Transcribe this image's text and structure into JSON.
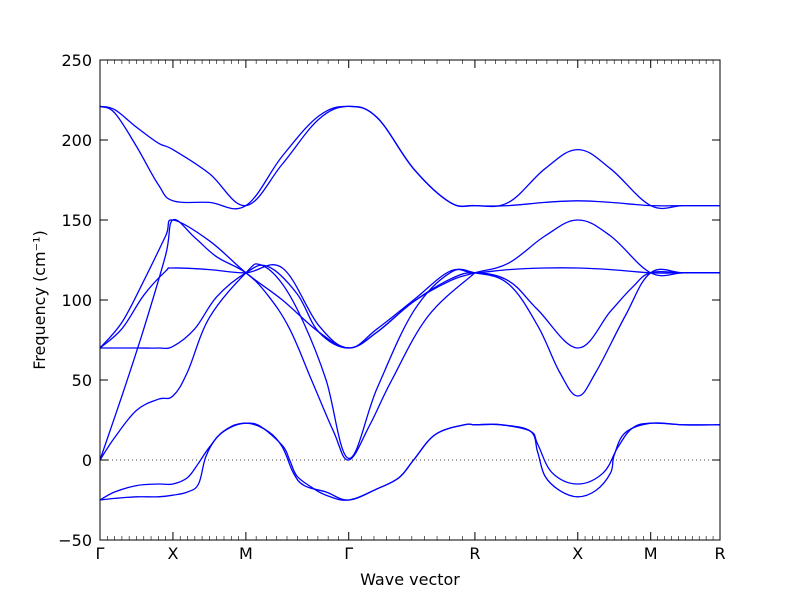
{
  "chart_data": {
    "type": "line",
    "title": "",
    "xlabel": "Wave vector",
    "ylabel": "Frequency (cm⁻¹)",
    "ylim": [
      -50,
      250
    ],
    "yticks": [
      "−50",
      "0",
      "50",
      "100",
      "150",
      "200",
      "250"
    ],
    "ytick_values": [
      -50,
      0,
      50,
      100,
      150,
      200,
      250
    ],
    "xlim": [
      0,
      8.5
    ],
    "xticks": [
      {
        "label": "Γ",
        "x": 0
      },
      {
        "label": "X",
        "x": 1
      },
      {
        "label": "M",
        "x": 2
      },
      {
        "label": "Γ",
        "x": 3.41
      },
      {
        "label": "R",
        "x": 5.14
      },
      {
        "label": "X",
        "x": 6.55
      },
      {
        "label": "M",
        "x": 7.55
      },
      {
        "label": "R",
        "x": 8.5
      }
    ],
    "line_color": "#0000ff",
    "zero_line": true,
    "grid": false,
    "series": [
      {
        "x": [
          0,
          0.2,
          0.5,
          0.8,
          1,
          1.5,
          2,
          2.5,
          3,
          3.41,
          3.8,
          4.3,
          4.8,
          5.14,
          5.6,
          6.1,
          6.55,
          7,
          7.55,
          8,
          8.5
        ],
        "y": [
          221,
          219,
          208,
          198,
          194,
          179,
          159,
          185,
          213,
          221,
          214,
          182,
          161,
          159,
          161,
          182,
          194,
          182,
          159,
          159,
          159
        ]
      },
      {
        "x": [
          0,
          0.2,
          0.5,
          0.8,
          1,
          1.5,
          2,
          2.5,
          3,
          3.41,
          3.8,
          4.3,
          4.8,
          5.14,
          5.6,
          6.1,
          6.55,
          7,
          7.55,
          8,
          8.5
        ],
        "y": [
          221,
          217,
          196,
          172,
          162,
          161,
          159,
          190,
          215,
          221,
          214,
          182,
          161,
          159,
          159,
          161,
          162,
          161,
          159,
          159,
          159
        ]
      },
      {
        "x": [
          0,
          0.3,
          0.6,
          0.9,
          1,
          1.5,
          2,
          2.5,
          3,
          3.41,
          3.8,
          4.3,
          4.8,
          5.14,
          5.6,
          6.1,
          6.55,
          7,
          7.55,
          8,
          8.5
        ],
        "y": [
          70,
          86,
          112,
          140,
          150,
          137,
          117,
          100,
          80,
          70,
          80,
          99,
          112,
          117,
          123,
          140,
          150,
          140,
          117,
          117,
          117
        ]
      },
      {
        "x": [
          0,
          0.3,
          0.6,
          0.9,
          1,
          1.5,
          2,
          2.5,
          3,
          3.41,
          3.8,
          4.3,
          4.8,
          5.14,
          5.6,
          6.1,
          6.55,
          7,
          7.55,
          8,
          8.5
        ],
        "y": [
          70,
          82,
          103,
          118,
          120,
          119,
          117,
          120,
          84,
          70,
          82,
          100,
          118,
          117,
          119,
          120,
          120,
          119,
          117,
          117,
          117
        ]
      },
      {
        "x": [
          0,
          0.5,
          0.8,
          1,
          1.3,
          1.6,
          2,
          2.3,
          2.7,
          3,
          3.41,
          3.8,
          4.3,
          4.8,
          5.14,
          5.6,
          6,
          6.55,
          7,
          7.3,
          7.55,
          8,
          8.5
        ],
        "y": [
          70,
          70,
          70,
          71,
          82,
          102,
          117,
          121,
          104,
          80,
          70,
          80,
          99,
          113,
          117,
          112,
          94,
          70,
          93,
          108,
          117,
          117,
          117
        ]
      },
      {
        "x": [
          0,
          0.2,
          0.5,
          0.8,
          1,
          1.2,
          1.5,
          2,
          2.2,
          2.5,
          2.8,
          3.1,
          3.41,
          3.8,
          4.3,
          4.8,
          5.14,
          5.6,
          6,
          6.3,
          6.55,
          6.8,
          7.2,
          7.55,
          8,
          8.5
        ],
        "y": [
          0,
          14,
          31,
          38,
          40,
          55,
          89,
          117,
          122,
          110,
          85,
          50,
          1,
          45,
          93,
          117,
          117,
          110,
          84,
          55,
          40,
          55,
          90,
          117,
          117,
          117
        ]
      },
      {
        "x": [
          0,
          0.3,
          0.6,
          0.9,
          1,
          1.3,
          1.6,
          2,
          2.3,
          2.6,
          2.9,
          3.2,
          3.41,
          3.7,
          4,
          4.5,
          5.14
        ],
        "y": [
          0,
          40,
          82,
          128,
          150,
          139,
          127,
          117,
          103,
          82,
          50,
          18,
          0,
          22,
          50,
          90,
          117
        ]
      },
      {
        "x": [
          0,
          0.2,
          0.5,
          0.8,
          1,
          1.2,
          1.35,
          1.5,
          1.7,
          2,
          2.3,
          2.5,
          2.65,
          2.8,
          3.1,
          3.41,
          3.8,
          4.1,
          4.3,
          4.6,
          5,
          5.14,
          5.5,
          5.9,
          6.0,
          6.2,
          6.55,
          6.9,
          7.1,
          7.3,
          7.55,
          8,
          8.5
        ],
        "y": [
          -25,
          -20,
          -16,
          -15,
          -15,
          -11,
          -2,
          8,
          18,
          23,
          18,
          8,
          -8,
          -16,
          -20,
          -25,
          -18,
          -11,
          0,
          16,
          22,
          22,
          22,
          18,
          10,
          -8,
          -15,
          -8,
          8,
          20,
          23,
          22,
          22
        ]
      },
      {
        "x": [
          0,
          0.2,
          0.5,
          0.8,
          1,
          1.2,
          1.35,
          1.45,
          1.6,
          1.8,
          2,
          2.2,
          2.5,
          2.6,
          2.7,
          2.9,
          3.1,
          3.41,
          3.8,
          4.1,
          4.3,
          4.6,
          5,
          5.14,
          5.5,
          5.9,
          6.0,
          6.1,
          6.3,
          6.55,
          6.8,
          7.0,
          7.05,
          7.2,
          7.55,
          8,
          8.5
        ],
        "y": [
          -25,
          -24,
          -23,
          -23,
          -22,
          -20,
          -15,
          2,
          14,
          21,
          23,
          21,
          9,
          0,
          -10,
          -17,
          -22,
          -25,
          -18,
          -11,
          0,
          16,
          22,
          22,
          22,
          18,
          5,
          -10,
          -19,
          -23,
          -19,
          -8,
          3,
          17,
          23,
          22,
          22
        ]
      }
    ]
  }
}
